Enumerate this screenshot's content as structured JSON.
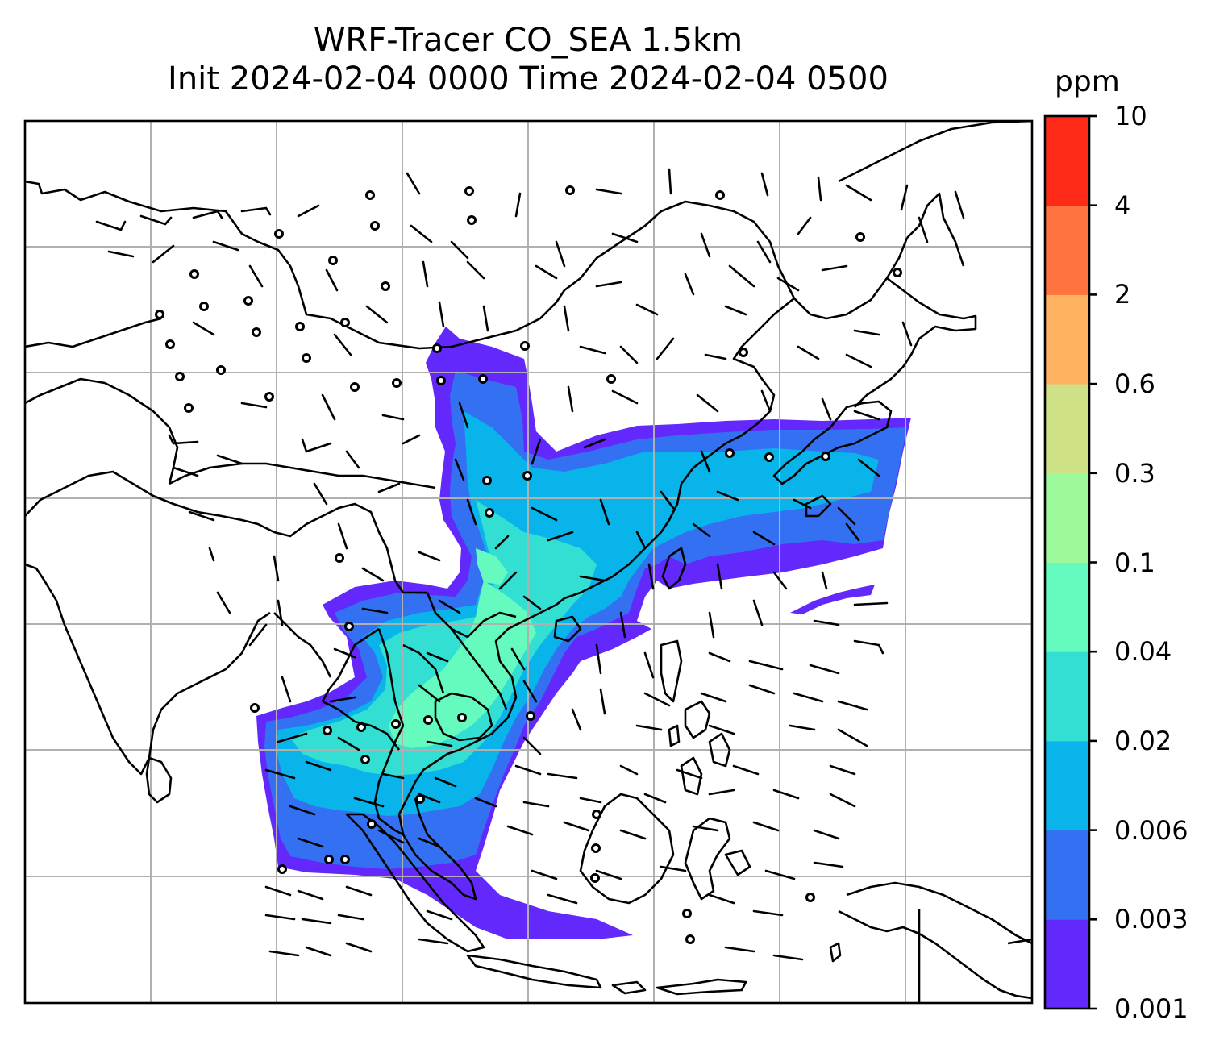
{
  "title": {
    "line1": "WRF-Tracer CO_SEA 1.5km",
    "line2": "Init 2024-02-04 0000 Time 2024-02-04 0500"
  },
  "colorbar": {
    "units": "ppm",
    "levels": [
      "0.001",
      "0.003",
      "0.006",
      "0.02",
      "0.04",
      "0.1",
      "0.3",
      "0.6",
      "2",
      "4",
      "10"
    ],
    "colors": [
      "#6328fb",
      "#3371f2",
      "#08b4ea",
      "#33dfd3",
      "#65fbbe",
      "#9cfa9c",
      "#cfe187",
      "#ffb260",
      "#ff733e",
      "#ff2a17"
    ]
  },
  "map": {
    "projection": "lambert-conformal",
    "gridlines": true,
    "coastline_color": "#000000",
    "grid_color": "#b0b0b0"
  }
}
